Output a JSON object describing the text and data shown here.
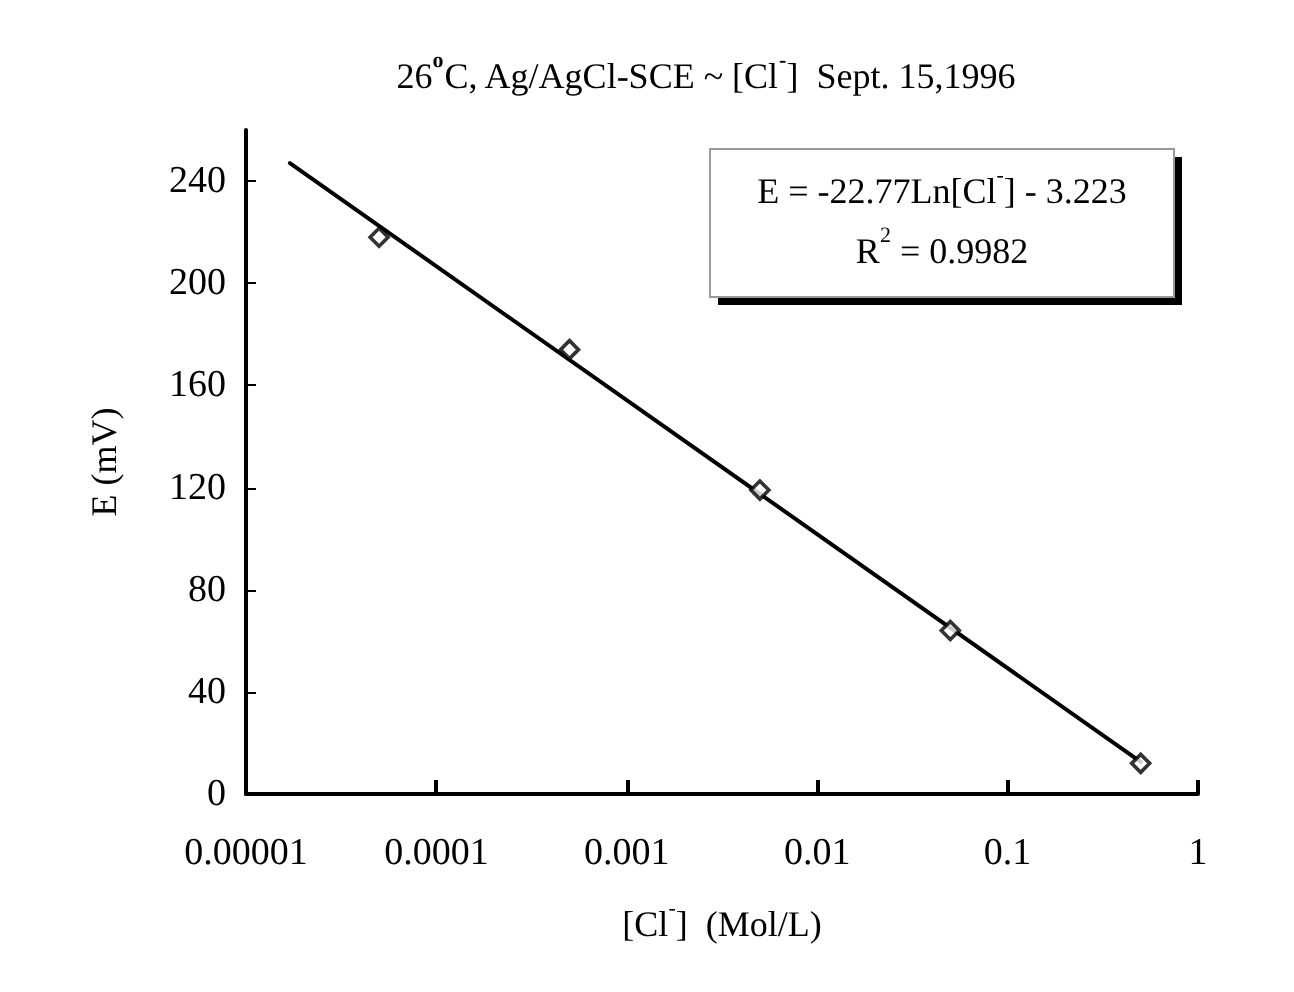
{
  "chart_data": {
    "type": "scatter",
    "title": "26$^{o}$C, Ag/AgCl-SCE ~ [Cl$^{-}$]  Sept. 15,1996",
    "xlabel": "[Cl$^{-}$]  (Mol/L)",
    "ylabel": "E (mV)",
    "log": "x",
    "xlim": [
      1e-05,
      1
    ],
    "xticks": [
      {
        "value": 1e-05,
        "label": "0.00001"
      },
      0.0001,
      0.001,
      0.01,
      0.1,
      1
    ],
    "ylim": [
      0,
      260
    ],
    "yticks": [
      0,
      40,
      80,
      120,
      160,
      200,
      240
    ],
    "grid": false,
    "marker": "diamond",
    "annotations": [
      "E = -22.77Ln[Cl$^{-}$] - 3.223",
      "R$^{2}$ = 0.9982"
    ],
    "series": [
      {
        "color": "#000000",
        "x": [
          5e-05,
          0.0005,
          0.005,
          0.05,
          0.5
        ],
        "values": [
          218,
          174,
          119,
          64,
          12
        ]
      },
      {
        "type": "line",
        "color": "#000000",
        "marker": "none",
        "line_style": "solid",
        "x": [
          1.7e-05,
          0.5
        ],
        "values": [
          247,
          12.6
        ]
      }
    ]
  }
}
